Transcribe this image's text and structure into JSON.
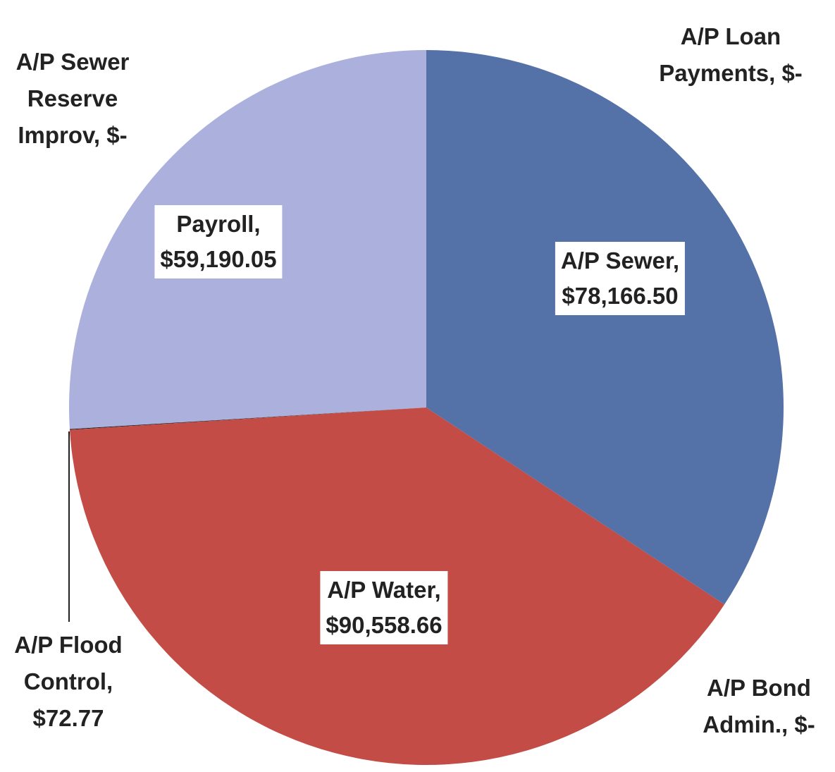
{
  "chart_data": {
    "type": "pie",
    "categories": [
      "A/P Loan Payments,",
      "A/P Sewer,",
      "A/P Bond Admin.,",
      "A/P Water,",
      "A/P Flood Control,",
      "Payroll,",
      "A/P Sewer Reserve Improv,"
    ],
    "values": [
      0,
      78166.5,
      0,
      90558.66,
      72.77,
      59190.05,
      0
    ],
    "value_labels": [
      "$-",
      "$78,166.50",
      "$-",
      "$90,558.66",
      "$72.77",
      "$59,190.05",
      "$-"
    ],
    "colors": [
      "#4f6fa8",
      "#5471a8",
      "#c0504d",
      "#c44c46",
      "#1a1a1a",
      "#abb0dc",
      "#abb0dc"
    ]
  }
}
